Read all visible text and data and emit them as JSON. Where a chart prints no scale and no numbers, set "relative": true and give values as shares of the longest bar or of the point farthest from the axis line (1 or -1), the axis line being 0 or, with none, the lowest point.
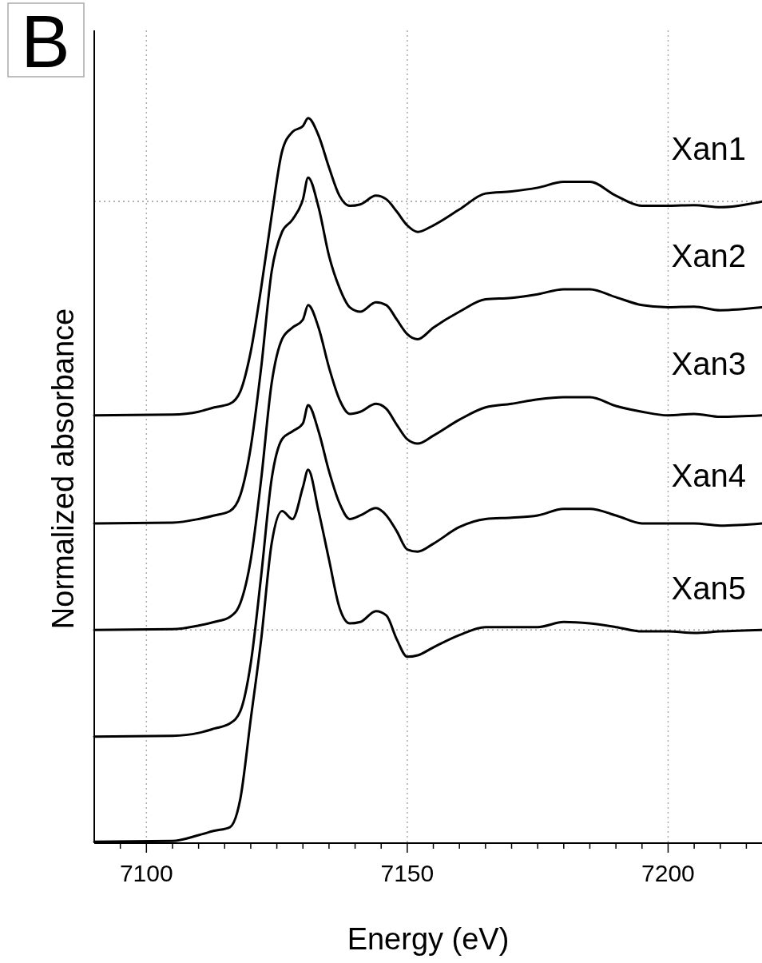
{
  "chart_data": {
    "type": "line",
    "relative": true,
    "xlabel": "Energy (eV)",
    "ylabel": "Normalized absorbance",
    "annotations": [
      "B"
    ],
    "xlim": [
      7090,
      7218
    ],
    "xticks": [
      {
        "value": 7095,
        "label": null
      },
      7100,
      {
        "value": 7105,
        "label": null
      },
      {
        "value": 7110,
        "label": null
      },
      {
        "value": 7115,
        "label": null
      },
      {
        "value": 7120,
        "label": null
      },
      {
        "value": 7125,
        "label": null
      },
      {
        "value": 7130,
        "label": null
      },
      {
        "value": 7135,
        "label": null
      },
      {
        "value": 7140,
        "label": null
      },
      {
        "value": 7145,
        "label": null
      },
      7150,
      {
        "value": 7155,
        "label": null
      },
      {
        "value": 7160,
        "label": null
      },
      {
        "value": 7165,
        "label": null
      },
      {
        "value": 7170,
        "label": null
      },
      {
        "value": 7175,
        "label": null
      },
      {
        "value": 7180,
        "label": null
      },
      {
        "value": 7185,
        "label": null
      },
      {
        "value": 7190,
        "label": null
      },
      {
        "value": 7195,
        "label": null
      },
      7200,
      {
        "value": 7205,
        "label": null
      },
      {
        "value": 7210,
        "label": null
      },
      {
        "value": 7215,
        "label": null
      }
    ],
    "grid": "x",
    "legend": false,
    "marker": "none",
    "line_style": "solid",
    "ref_lines": [
      {
        "axis": "y",
        "value": 0.885,
        "color": "#999999",
        "line_style": "dotted"
      },
      {
        "axis": "y",
        "value": 0.294,
        "color": "#999999",
        "line_style": "dotted"
      }
    ],
    "x": [
      7090,
      7105,
      7110,
      7113,
      7116,
      7118,
      7120,
      7122,
      7124,
      7126,
      7128,
      7130,
      7131,
      7133,
      7135,
      7137,
      7139,
      7141,
      7144,
      7146,
      7148,
      7150,
      7152,
      7155,
      7160,
      7165,
      7170,
      7175,
      7180,
      7185,
      7190,
      7195,
      7200,
      7205,
      7210,
      7218
    ],
    "series": [
      {
        "name": "Xan1",
        "color": "#000000",
        "values": [
          0.59,
          0.591,
          0.595,
          0.601,
          0.606,
          0.623,
          0.678,
          0.766,
          0.865,
          0.954,
          0.981,
          0.989,
          1,
          0.976,
          0.932,
          0.893,
          0.879,
          0.881,
          0.893,
          0.888,
          0.871,
          0.852,
          0.843,
          0.852,
          0.874,
          0.896,
          0.899,
          0.904,
          0.912,
          0.912,
          0.893,
          0.879,
          0.879,
          0.88,
          0.877,
          0.885
        ]
      },
      {
        "name": "Xan2",
        "color": "#000000",
        "values": [
          0.441,
          0.442,
          0.447,
          0.452,
          0.458,
          0.48,
          0.546,
          0.656,
          0.788,
          0.843,
          0.86,
          0.888,
          0.918,
          0.877,
          0.81,
          0.766,
          0.739,
          0.733,
          0.746,
          0.742,
          0.722,
          0.702,
          0.695,
          0.711,
          0.733,
          0.75,
          0.752,
          0.757,
          0.764,
          0.764,
          0.753,
          0.742,
          0.739,
          0.74,
          0.735,
          0.739
        ]
      },
      {
        "name": "Xan3",
        "color": "#000000",
        "values": [
          0.294,
          0.295,
          0.3,
          0.305,
          0.312,
          0.331,
          0.391,
          0.502,
          0.634,
          0.695,
          0.711,
          0.722,
          0.742,
          0.711,
          0.656,
          0.612,
          0.592,
          0.595,
          0.606,
          0.599,
          0.577,
          0.557,
          0.551,
          0.562,
          0.584,
          0.601,
          0.606,
          0.612,
          0.615,
          0.615,
          0.603,
          0.595,
          0.59,
          0.592,
          0.588,
          0.59
        ]
      },
      {
        "name": "Xan4",
        "color": "#000000",
        "values": [
          0.147,
          0.148,
          0.152,
          0.158,
          0.165,
          0.182,
          0.248,
          0.369,
          0.502,
          0.557,
          0.568,
          0.579,
          0.604,
          0.568,
          0.513,
          0.469,
          0.447,
          0.452,
          0.462,
          0.452,
          0.43,
          0.405,
          0.402,
          0.413,
          0.436,
          0.447,
          0.449,
          0.452,
          0.461,
          0.461,
          0.452,
          0.441,
          0.441,
          0.441,
          0.438,
          0.441
        ]
      },
      {
        "name": "Xan5",
        "color": "#000000",
        "values": [
          0.002,
          0.003,
          0.011,
          0.017,
          0.022,
          0.061,
          0.171,
          0.281,
          0.413,
          0.458,
          0.447,
          0.491,
          0.515,
          0.458,
          0.391,
          0.325,
          0.303,
          0.305,
          0.32,
          0.314,
          0.281,
          0.257,
          0.259,
          0.27,
          0.287,
          0.298,
          0.298,
          0.298,
          0.305,
          0.303,
          0.298,
          0.292,
          0.292,
          0.29,
          0.292,
          0.294
        ]
      }
    ]
  }
}
